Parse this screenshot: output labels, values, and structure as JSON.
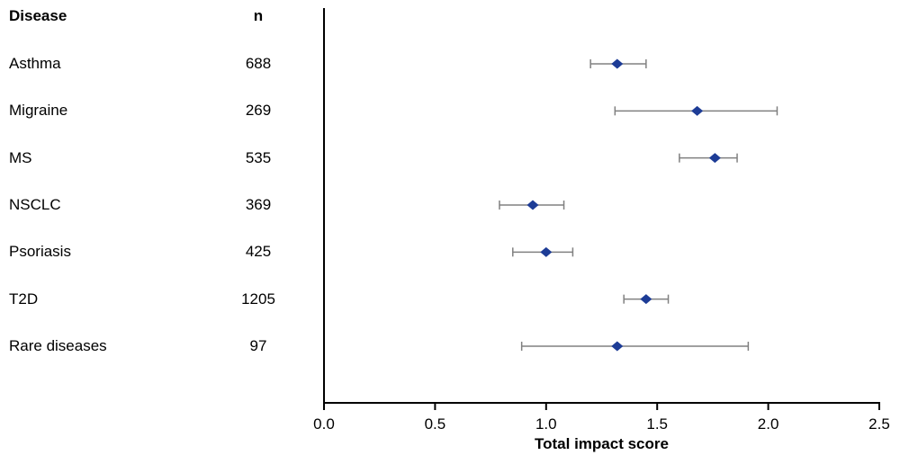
{
  "chart_data": {
    "type": "scatter",
    "subtype": "forest-plot",
    "title": "",
    "xlabel": "Total impact score",
    "xlim": [
      0.0,
      2.5
    ],
    "xticks": [
      0.0,
      0.5,
      1.0,
      1.5,
      2.0,
      2.5
    ],
    "xtick_labels": [
      "0.0",
      "0.5",
      "1.0",
      "1.5",
      "2.0",
      "2.5"
    ],
    "columns": {
      "disease": "Disease",
      "n": "n"
    },
    "series": [
      {
        "label": "Asthma",
        "n": "688",
        "value": 1.32,
        "ci_low": 1.2,
        "ci_high": 1.45
      },
      {
        "label": "Migraine",
        "n": "269",
        "value": 1.68,
        "ci_low": 1.31,
        "ci_high": 2.04
      },
      {
        "label": "MS",
        "n": "535",
        "value": 1.76,
        "ci_low": 1.6,
        "ci_high": 1.86
      },
      {
        "label": "NSCLC",
        "n": "369",
        "value": 0.94,
        "ci_low": 0.79,
        "ci_high": 1.08
      },
      {
        "label": "Psoriasis",
        "n": "425",
        "value": 1.0,
        "ci_low": 0.85,
        "ci_high": 1.12
      },
      {
        "label": "T2D",
        "n": "1205",
        "value": 1.45,
        "ci_low": 1.35,
        "ci_high": 1.55
      },
      {
        "label": "Rare diseases",
        "n": "97",
        "value": 1.32,
        "ci_low": 0.89,
        "ci_high": 1.91
      }
    ],
    "marker_color": "#1d3c96",
    "error_color": "#808080",
    "axis_color": "#000000",
    "legend": "none",
    "grid": "off"
  }
}
